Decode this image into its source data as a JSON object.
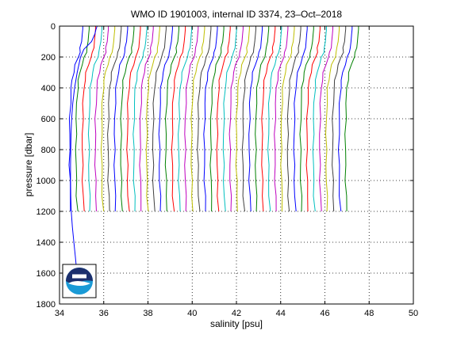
{
  "chart_data": {
    "type": "line",
    "title": "WMO ID 1901003, internal ID 3374, 23–Oct–2018",
    "xlabel": "salinity [psu]",
    "ylabel": "pressure [dbar]",
    "xlim": [
      34,
      50
    ],
    "ylim": [
      0,
      1800
    ],
    "y_reversed": true,
    "xticks": [
      "34",
      "36",
      "38",
      "40",
      "42",
      "44",
      "46",
      "48",
      "50"
    ],
    "yticks": [
      "0",
      "200",
      "400",
      "600",
      "800",
      "1000",
      "1200",
      "1400",
      "1600",
      "1800"
    ],
    "grid": true,
    "grid_style": "dotted",
    "legend": "none",
    "offset_step": 0.29,
    "profile_shape": {
      "pressure": [
        0,
        20,
        50,
        100,
        140,
        170,
        200,
        250,
        300,
        350,
        400,
        500,
        600,
        700,
        800,
        900,
        1000,
        1100,
        1200
      ],
      "salinity_base": [
        35.05,
        35.05,
        35.03,
        35.0,
        34.95,
        34.92,
        34.85,
        34.72,
        34.63,
        34.57,
        34.53,
        34.49,
        34.47,
        34.46,
        34.46,
        34.46,
        34.47,
        34.49,
        34.52
      ]
    },
    "offsets": [
      0,
      0.29,
      0.58,
      0.87,
      1.16,
      1.45,
      1.74,
      2.03,
      2.32,
      2.61,
      2.9,
      3.19,
      3.48,
      3.77,
      4.06,
      4.35,
      4.64,
      4.93,
      5.22,
      5.51,
      5.8,
      6.09,
      6.38,
      6.67,
      6.96,
      7.25,
      7.54,
      7.83,
      8.12,
      8.41,
      8.7,
      8.99,
      9.28,
      9.57,
      9.86,
      10.15,
      10.44,
      10.73,
      11.02,
      11.31,
      11.6,
      11.89,
      12.18,
      12.47
    ],
    "deep_profile": {
      "pressure": [
        0,
        20,
        50,
        100,
        150,
        200,
        300,
        400,
        500,
        600,
        700,
        800,
        900,
        1000,
        1100,
        1200,
        1300,
        1400,
        1500,
        1560,
        1600
      ],
      "salinity": [
        35.7,
        35.65,
        35.6,
        35.45,
        35.1,
        34.95,
        34.8,
        34.68,
        34.6,
        34.55,
        34.52,
        34.51,
        34.5,
        34.5,
        34.51,
        34.53,
        34.58,
        34.65,
        34.72,
        34.76,
        34.8
      ]
    },
    "series_colors": [
      "#0000ff",
      "#008000",
      "#ff0000",
      "#00bfbf",
      "#bf00bf",
      "#bfbf00",
      "#404040"
    ],
    "logo": "noaa-logo"
  }
}
